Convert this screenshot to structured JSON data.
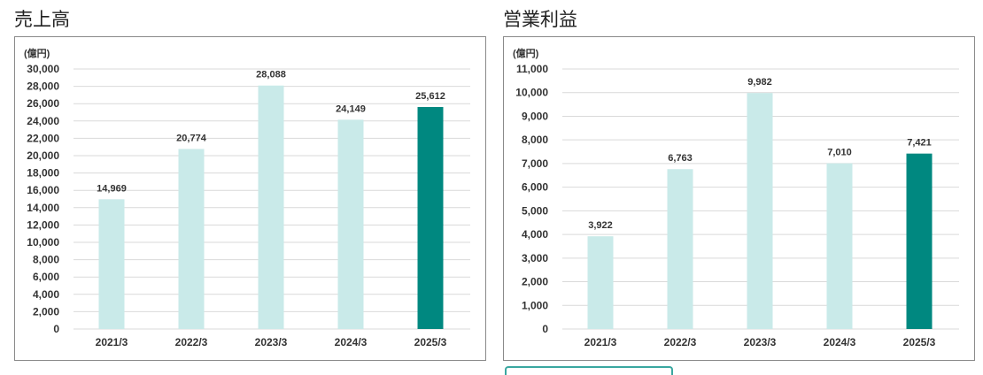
{
  "charts": [
    {
      "title": "売上高",
      "unit": "(億円)"
    },
    {
      "title": "営業利益",
      "unit": "(億円)"
    }
  ],
  "colors": {
    "light_bar": "#c9eae9",
    "highlight_bar": "#008880",
    "grid": "#d9d9d9",
    "frame": "#8a8a8a"
  },
  "chart_data": [
    {
      "type": "bar",
      "title": "売上高",
      "ylabel": "(億円)",
      "categories": [
        "2021/3",
        "2022/3",
        "2023/3",
        "2024/3",
        "2025/3"
      ],
      "values": [
        14969,
        20774,
        28088,
        24149,
        25612
      ],
      "value_labels": [
        "14,969",
        "20,774",
        "28,088",
        "24,149",
        "25,612"
      ],
      "highlight_index": 4,
      "ylim": [
        0,
        30000
      ],
      "yticks": [
        "0",
        "2,000",
        "4,000",
        "6,000",
        "8,000",
        "10,000",
        "12,000",
        "14,000",
        "16,000",
        "18,000",
        "20,000",
        "22,000",
        "24,000",
        "26,000",
        "28,000",
        "30,000"
      ],
      "grid": true,
      "legend": "none"
    },
    {
      "type": "bar",
      "title": "営業利益",
      "ylabel": "(億円)",
      "categories": [
        "2021/3",
        "2022/3",
        "2023/3",
        "2024/3",
        "2025/3"
      ],
      "values": [
        3922,
        6763,
        9982,
        7010,
        7421
      ],
      "value_labels": [
        "3,922",
        "6,763",
        "9,982",
        "7,010",
        "7,421"
      ],
      "highlight_index": 4,
      "ylim": [
        0,
        11000
      ],
      "yticks": [
        "0",
        "1,000",
        "2,000",
        "3,000",
        "4,000",
        "5,000",
        "6,000",
        "7,000",
        "8,000",
        "9,000",
        "10,000",
        "11,000"
      ],
      "grid": true,
      "legend": "none"
    }
  ]
}
